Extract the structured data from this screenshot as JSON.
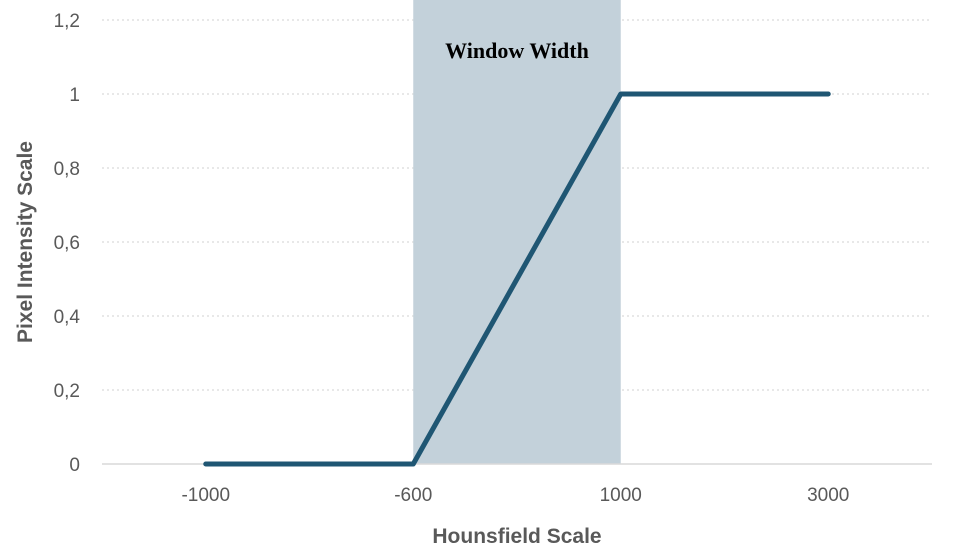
{
  "chart_data": {
    "type": "line",
    "categories": [
      "-1000",
      "-600",
      "1000",
      "3000"
    ],
    "series": [
      {
        "values": [
          0,
          0,
          1,
          1
        ]
      }
    ],
    "ylim": [
      0,
      1.2
    ],
    "yticks": [
      "0",
      "0,2",
      "0,4",
      "0,6",
      "0,8",
      "1",
      "1,2"
    ],
    "xlabel": "Hounsfield Scale",
    "ylabel": "Pixel Intensity Scale",
    "grid": true,
    "shaded_band": {
      "from": "-600",
      "to": "1000",
      "label": "Window Width"
    },
    "colors": {
      "line": "#1f5673",
      "band": "#c3d1da",
      "grid": "#d0d0d0",
      "axis": "#d9d9d9"
    }
  }
}
